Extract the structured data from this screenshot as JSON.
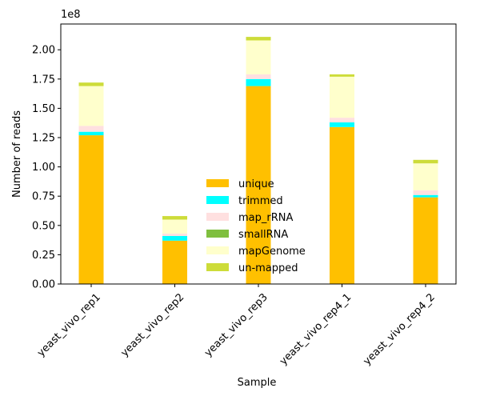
{
  "chart_data": {
    "type": "bar",
    "stacked": true,
    "categories": [
      "yeast_vivo_rep1",
      "yeast_vivo_rep2",
      "yeast_vivo_rep3",
      "yeast_vivo_rep4_1",
      "yeast_vivo_rep4_2"
    ],
    "series": [
      {
        "name": "unique",
        "color": "#ffc000",
        "values": [
          127000000.0,
          37000000.0,
          169000000.0,
          134000000.0,
          74000000.0
        ]
      },
      {
        "name": "trimmed",
        "color": "#00ffff",
        "values": [
          3000000.0,
          4000000.0,
          6000000.0,
          4000000.0,
          2000000.0
        ]
      },
      {
        "name": "map_rRNA",
        "color": "#ffe0e0",
        "values": [
          5000000.0,
          2000000.0,
          4000000.0,
          4000000.0,
          4000000.0
        ]
      },
      {
        "name": "smallRNA",
        "color": "#7fbf3f",
        "values": [
          0.0,
          0.0,
          0.0,
          0.0,
          0.0
        ]
      },
      {
        "name": "mapGenome",
        "color": "#ffffcc",
        "values": [
          34000000.0,
          12000000.0,
          29000000.0,
          35000000.0,
          23000000.0
        ]
      },
      {
        "name": "un-mapped",
        "color": "#cddc39",
        "values": [
          3000000.0,
          3000000.0,
          3000000.0,
          2000000.0,
          3000000.0
        ]
      }
    ],
    "xlabel": "Sample",
    "ylabel": "Number of reads",
    "yscale_offset": "1e8",
    "ylim": [
      0,
      222000000.0
    ],
    "yticks": [
      0,
      25000000.0,
      50000000.0,
      75000000.0,
      100000000.0,
      125000000.0,
      150000000.0,
      175000000.0,
      200000000.0
    ],
    "ytick_labels": [
      "0.00",
      "0.25",
      "0.50",
      "0.75",
      "1.00",
      "1.25",
      "1.50",
      "1.75",
      "2.00"
    ],
    "grid": false,
    "legend_position": "lower-center"
  }
}
